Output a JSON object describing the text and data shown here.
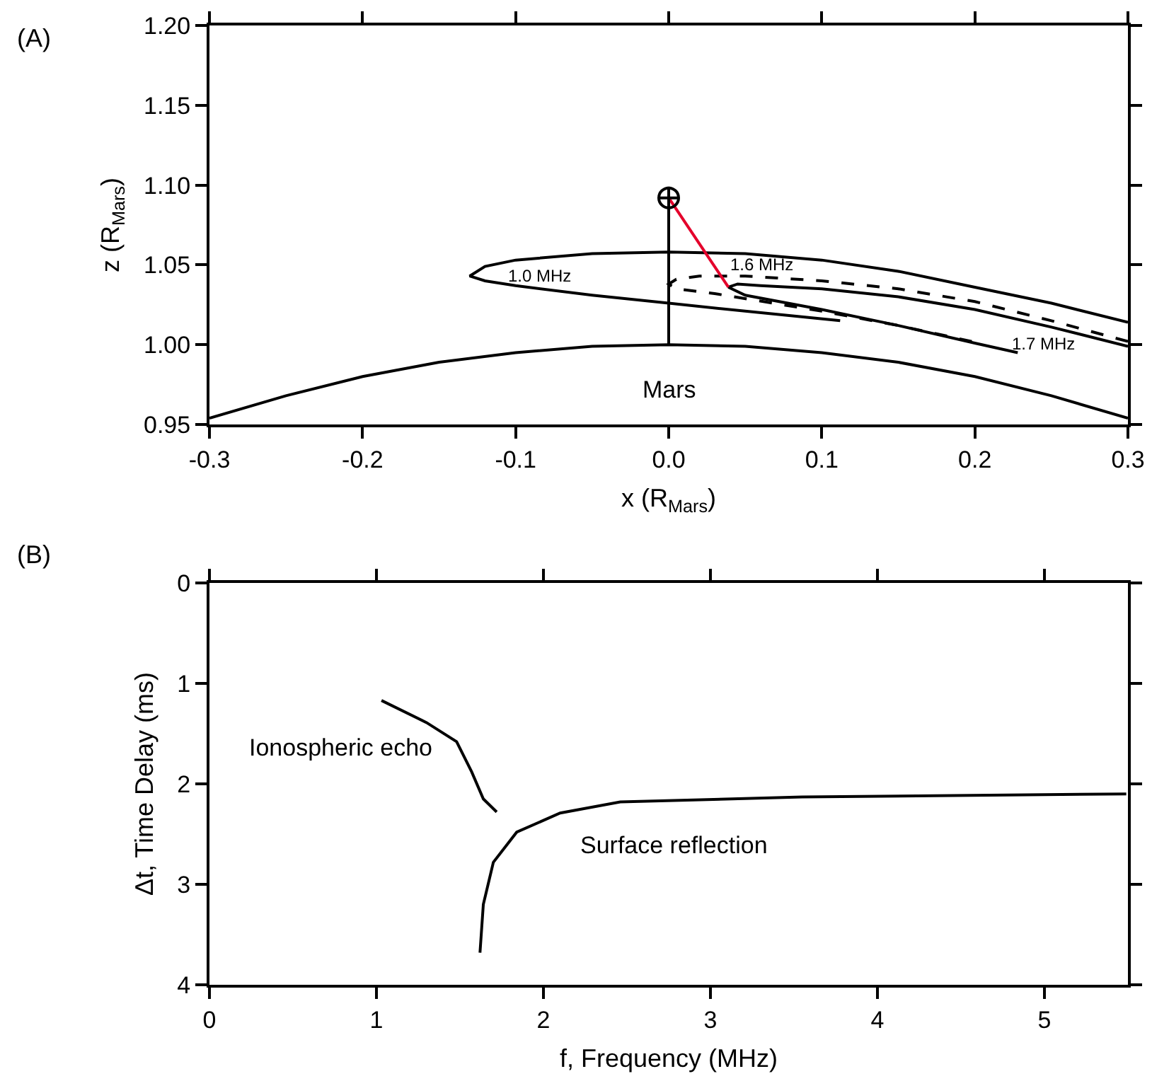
{
  "chart_data": [
    {
      "type": "line",
      "xlabel": "x (R$_{Mars}$)",
      "ylabel": "z (R$_{Mars}$)",
      "xlim": [
        -0.3,
        0.3
      ],
      "xticks": [
        -0.3,
        -0.2,
        -0.1,
        {
          "value": 0,
          "label": "0.0"
        },
        0.1,
        0.2,
        0.3
      ],
      "ylim": [
        0.95,
        1.2
      ],
      "yticks": [
        0.95,
        {
          "value": 1,
          "label": "1.00"
        },
        1.05,
        {
          "value": 1.1,
          "label": "1.10"
        },
        1.15,
        {
          "value": 1.2,
          "label": "1.20"
        }
      ],
      "grid": false,
      "legend": false,
      "series": [
        {
          "name": "Mars",
          "color": "#000000",
          "x": [
            -0.3,
            -0.25,
            -0.2,
            -0.15,
            -0.1,
            -0.05,
            0,
            0.05,
            0.1,
            0.15,
            0.2,
            0.25,
            0.3
          ],
          "values": [
            0.954,
            0.968,
            0.98,
            0.989,
            0.995,
            0.999,
            1.0,
            0.999,
            0.995,
            0.989,
            0.98,
            0.968,
            0.954
          ]
        },
        {
          "color": "#000000",
          "x": [
            0,
            0
          ],
          "values": [
            1.0,
            1.099
          ]
        },
        {
          "name": "1.0 MHz",
          "color": "#000000",
          "x": [
            0.3,
            0.25,
            0.2,
            0.15,
            0.1,
            0.05,
            0,
            -0.05,
            -0.1,
            -0.12,
            -0.13,
            -0.12,
            -0.1,
            -0.05,
            0,
            0.05,
            0.112
          ],
          "values": [
            1.014,
            1.026,
            1.036,
            1.046,
            1.053,
            1.057,
            1.058,
            1.057,
            1.053,
            1.049,
            1.043,
            1.04,
            1.037,
            1.031,
            1.026,
            1.021,
            1.015
          ]
        },
        {
          "name": "1.7 MHz",
          "color": "#000000",
          "x": [
            0.3,
            0.25,
            0.2,
            0.15,
            0.1,
            0.06,
            0.045,
            0.039,
            0.05,
            0.1,
            0.15,
            0.2,
            0.228
          ],
          "values": [
            0.999,
            1.011,
            1.022,
            1.03,
            1.035,
            1.037,
            1.038,
            1.036,
            1.031,
            1.022,
            1.012,
            1.001,
            0.995
          ]
        },
        {
          "name": "1.6 MHz",
          "color": "#000000",
          "line_style": "dashed",
          "x": [
            0.3,
            0.25,
            0.2,
            0.15,
            0.1,
            0.05,
            0.02,
            0.005,
            0,
            0.005,
            0.03,
            0.1,
            0.15,
            0.198
          ],
          "values": [
            1.002,
            1.015,
            1.027,
            1.035,
            1.04,
            1.043,
            1.043,
            1.041,
            1.038,
            1.035,
            1.032,
            1.021,
            1.012,
            1.002
          ]
        },
        {
          "color": "#e4002b",
          "x": [
            0,
            0.039
          ],
          "values": [
            1.092,
            1.036
          ]
        },
        {
          "type": "scatter",
          "marker": "cross",
          "color": "#000000",
          "x": [
            0
          ],
          "values": [
            1.092
          ]
        }
      ],
      "annotations": [
        "(A)"
      ]
    },
    {
      "type": "line",
      "xlabel": "f, Frequency (MHz)",
      "ylabel": "Δt, Time Delay (ms)",
      "xlim": [
        0,
        5.5
      ],
      "xticks": [
        0,
        1,
        2,
        3,
        4,
        5
      ],
      "ylim": [
        4,
        0
      ],
      "yticks": [
        0,
        1,
        2,
        3,
        4
      ],
      "grid": false,
      "legend": false,
      "series": [
        {
          "name": "Ionospheric echo",
          "color": "#000000",
          "x": [
            1.03,
            1.3,
            1.48,
            1.57,
            1.64,
            1.72
          ],
          "values": [
            1.17,
            1.39,
            1.58,
            1.88,
            2.15,
            2.28
          ]
        },
        {
          "name": "Surface reflection",
          "color": "#000000",
          "x": [
            1.62,
            1.64,
            1.7,
            1.84,
            2.1,
            2.46,
            3.55,
            5.49
          ],
          "values": [
            3.68,
            3.2,
            2.78,
            2.48,
            2.29,
            2.18,
            2.13,
            2.1
          ]
        }
      ],
      "annotations": [
        "(B)"
      ]
    }
  ]
}
